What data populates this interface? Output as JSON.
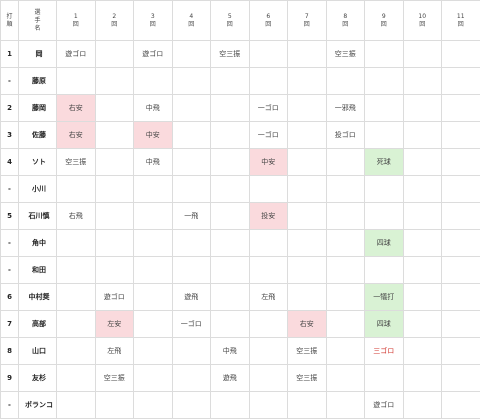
{
  "header": {
    "order_label": [
      "打",
      "順"
    ],
    "player_label": [
      "選",
      "手",
      "名"
    ],
    "innings": [
      "1",
      "2",
      "3",
      "4",
      "5",
      "6",
      "7",
      "8",
      "9",
      "10",
      "11"
    ],
    "inning_suffix": "回"
  },
  "rows": [
    {
      "order": "1",
      "name": "岡",
      "results": [
        "遊ゴロ",
        "",
        "遊ゴロ",
        "",
        "空三振",
        "",
        "",
        "空三振",
        "",
        "",
        ""
      ]
    },
    {
      "order": "-",
      "name": "藤原",
      "results": [
        "",
        "",
        "",
        "",
        "",
        "",
        "",
        "",
        "",
        "",
        ""
      ]
    },
    {
      "order": "2",
      "name": "藤岡",
      "results": [
        "右安",
        "",
        "中飛",
        "",
        "",
        "一ゴロ",
        "",
        "一邪飛",
        "",
        "",
        ""
      ]
    },
    {
      "order": "3",
      "name": "佐藤",
      "results": [
        "右安",
        "",
        "中安",
        "",
        "",
        "一ゴロ",
        "",
        "投ゴロ",
        "",
        "",
        ""
      ]
    },
    {
      "order": "4",
      "name": "ソト",
      "results": [
        "空三振",
        "",
        "中飛",
        "",
        "",
        "中安",
        "",
        "",
        "死球",
        "",
        ""
      ]
    },
    {
      "order": "-",
      "name": "小川",
      "results": [
        "",
        "",
        "",
        "",
        "",
        "",
        "",
        "",
        "",
        "",
        ""
      ]
    },
    {
      "order": "5",
      "name": "石川慎",
      "results": [
        "右飛",
        "",
        "",
        "一飛",
        "",
        "投安",
        "",
        "",
        "",
        "",
        ""
      ]
    },
    {
      "order": "-",
      "name": "角中",
      "results": [
        "",
        "",
        "",
        "",
        "",
        "",
        "",
        "",
        "四球",
        "",
        ""
      ]
    },
    {
      "order": "-",
      "name": "和田",
      "results": [
        "",
        "",
        "",
        "",
        "",
        "",
        "",
        "",
        "",
        "",
        ""
      ]
    },
    {
      "order": "6",
      "name": "中村奨",
      "results": [
        "",
        "遊ゴロ",
        "",
        "遊飛",
        "",
        "左飛",
        "",
        "",
        "一犠打",
        "",
        ""
      ]
    },
    {
      "order": "7",
      "name": "高部",
      "results": [
        "",
        "左安",
        "",
        "一ゴロ",
        "",
        "",
        "右安",
        "",
        "四球",
        "",
        ""
      ]
    },
    {
      "order": "8",
      "name": "山口",
      "results": [
        "",
        "左飛",
        "",
        "",
        "中飛",
        "",
        "空三振",
        "",
        "三ゴロ",
        "",
        ""
      ]
    },
    {
      "order": "9",
      "name": "友杉",
      "results": [
        "",
        "空三振",
        "",
        "",
        "遊飛",
        "",
        "空三振",
        "",
        "",
        "",
        ""
      ]
    },
    {
      "order": "-",
      "name": "ポランコ",
      "results": [
        "",
        "",
        "",
        "",
        "",
        "",
        "",
        "",
        "遊ゴロ",
        "",
        ""
      ]
    }
  ],
  "colors": {
    "hit_bg": "#fadadd",
    "onbase_bg": "#d9f2d4",
    "error_text": "#d0342c",
    "grid": "#dcdcdc"
  }
}
